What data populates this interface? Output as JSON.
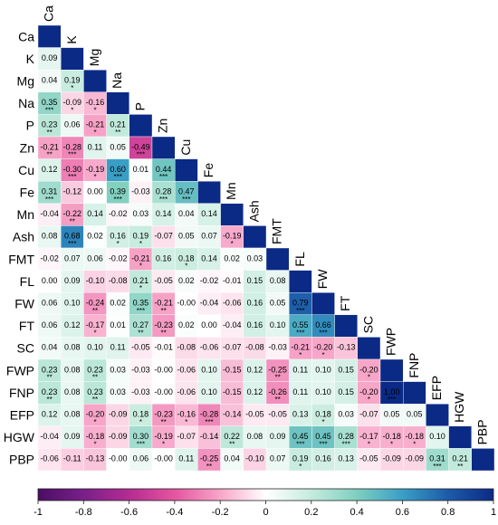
{
  "chart_data": {
    "type": "heatmap",
    "title": "",
    "variables": [
      "Ca",
      "K",
      "Mg",
      "Na",
      "P",
      "Zn",
      "Cu",
      "Fe",
      "Mn",
      "Ash",
      "FMT",
      "FL",
      "FW",
      "FT",
      "SC",
      "FWP",
      "FNP",
      "EFP",
      "HGW",
      "PBP"
    ],
    "rows": [
      {
        "label": "Ca",
        "values": [],
        "sig": []
      },
      {
        "label": "K",
        "values": [
          "0.09"
        ],
        "sig": [
          ""
        ]
      },
      {
        "label": "Mg",
        "values": [
          "0.04",
          "0.19"
        ],
        "sig": [
          "",
          "*"
        ]
      },
      {
        "label": "Na",
        "values": [
          "0.35",
          "-0.09",
          "-0.16"
        ],
        "sig": [
          "***",
          "*",
          "*"
        ]
      },
      {
        "label": "P",
        "values": [
          "0.23",
          "0.06",
          "-0.21",
          "0.21"
        ],
        "sig": [
          "**",
          "",
          "*",
          "**"
        ]
      },
      {
        "label": "Zn",
        "values": [
          "-0.21",
          "-0.28",
          "0.11",
          "0.05",
          "-0.49"
        ],
        "sig": [
          "**",
          "***",
          "",
          "",
          "***"
        ]
      },
      {
        "label": "Cu",
        "values": [
          "0.12",
          "-0.30",
          "-0.19",
          "0.60",
          "0.01",
          "0.44"
        ],
        "sig": [
          "",
          "***",
          "*",
          "***",
          "",
          "***"
        ]
      },
      {
        "label": "Fe",
        "values": [
          "0.31",
          "-0.12",
          "0.00",
          "0.39",
          "-0.03",
          "0.28",
          "0.47"
        ],
        "sig": [
          "***",
          "",
          "",
          "***",
          "",
          "***",
          "***"
        ]
      },
      {
        "label": "Mn",
        "values": [
          "-0.04",
          "-0.22",
          "0.14",
          "-0.02",
          "0.03",
          "0.14",
          "0.04",
          "0.14"
        ],
        "sig": [
          "",
          "**",
          "",
          "",
          "",
          "",
          "",
          ""
        ]
      },
      {
        "label": "Ash",
        "values": [
          "0.08",
          "0.68",
          "0.02",
          "0.16",
          "0.19",
          "-0.07",
          "0.05",
          "0.07",
          "-0.19"
        ],
        "sig": [
          "",
          "***",
          "",
          "*",
          "*",
          "",
          "",
          "",
          "*"
        ]
      },
      {
        "label": "FMT",
        "values": [
          "-0.02",
          "0.07",
          "0.06",
          "-0.02",
          "-0.21",
          "0.16",
          "0.18",
          "0.14",
          "0.02",
          "0.03"
        ],
        "sig": [
          "",
          "",
          "",
          "",
          "*",
          "",
          "*",
          "",
          "",
          ""
        ]
      },
      {
        "label": "FL",
        "values": [
          "0.00",
          "0.09",
          "-0.10",
          "-0.08",
          "0.21",
          "-0.05",
          "0.02",
          "-0.02",
          "-0.01",
          "0.15",
          "0.08"
        ],
        "sig": [
          "",
          "",
          "",
          "",
          "*",
          "",
          "",
          "",
          "",
          "",
          ""
        ]
      },
      {
        "label": "FW",
        "values": [
          "0.06",
          "0.10",
          "-0.24",
          "0.02",
          "0.35",
          "-0.21",
          "-0.00",
          "-0.04",
          "-0.06",
          "0.16",
          "0.05",
          "0.79"
        ],
        "sig": [
          "",
          "",
          "**",
          "",
          "***",
          "**",
          "",
          "",
          "",
          "",
          "",
          "***"
        ]
      },
      {
        "label": "FT",
        "values": [
          "0.06",
          "0.12",
          "-0.17",
          "0.01",
          "0.27",
          "-0.23",
          "0.02",
          "0.00",
          "-0.04",
          "0.16",
          "0.10",
          "0.55",
          "0.66"
        ],
        "sig": [
          "",
          "",
          "*",
          "",
          "**",
          "**",
          "",
          "",
          "",
          "",
          "",
          "***",
          "***"
        ]
      },
      {
        "label": "SC",
        "values": [
          "0.04",
          "0.08",
          "0.10",
          "0.11",
          "-0.05",
          "-0.01",
          "-0.08",
          "-0.06",
          "-0.07",
          "-0.08",
          "-0.03",
          "-0.21",
          "-0.20",
          "-0.13"
        ],
        "sig": [
          "",
          "",
          "",
          "",
          "",
          "",
          "",
          "",
          "",
          "",
          "",
          "*",
          "*",
          ""
        ]
      },
      {
        "label": "FWP",
        "values": [
          "0.23",
          "0.08",
          "0.23",
          "0.03",
          "-0.03",
          "-0.00",
          "-0.06",
          "0.10",
          "-0.15",
          "0.12",
          "-0.25",
          "0.11",
          "0.10",
          "0.15",
          "-0.20"
        ],
        "sig": [
          "**",
          "",
          "**",
          "",
          "",
          "",
          "",
          "",
          "",
          "",
          "**",
          "",
          "",
          "",
          "*"
        ]
      },
      {
        "label": "FNP",
        "values": [
          "0.23",
          "0.08",
          "0.23",
          "0.03",
          "-0.03",
          "-0.00",
          "-0.06",
          "0.10",
          "-0.15",
          "0.12",
          "-0.26",
          "0.11",
          "0.10",
          "0.15",
          "-0.20",
          "1.00"
        ],
        "sig": [
          "**",
          "",
          "**",
          "",
          "",
          "",
          "",
          "",
          "",
          "",
          "**",
          "",
          "",
          "",
          "*",
          "***"
        ]
      },
      {
        "label": "EFP",
        "values": [
          "0.12",
          "0.08",
          "-0.20",
          "-0.09",
          "0.18",
          "-0.23",
          "-0.16",
          "-0.28",
          "-0.14",
          "-0.05",
          "-0.05",
          "0.13",
          "0.18",
          "0.03",
          "-0.07",
          "0.05",
          "0.05"
        ],
        "sig": [
          "",
          "",
          "*",
          "",
          "*",
          "**",
          "*",
          "***",
          "",
          "",
          "",
          "",
          "*",
          "",
          "",
          "",
          ""
        ]
      },
      {
        "label": "HGW",
        "values": [
          "-0.04",
          "0.09",
          "-0.18",
          "-0.09",
          "0.30",
          "-0.19",
          "-0.07",
          "-0.14",
          "0.22",
          "0.08",
          "0.09",
          "0.45",
          "0.45",
          "0.28",
          "-0.17",
          "-0.18",
          "-0.18",
          "0.10"
        ],
        "sig": [
          "",
          "",
          "*",
          "",
          "***",
          "*",
          "",
          "",
          "**",
          "",
          "",
          "***",
          "***",
          "***",
          "*",
          "*",
          "*",
          ""
        ]
      },
      {
        "label": "PBP",
        "values": [
          "-0.06",
          "-0.11",
          "-0.13",
          "-0.00",
          "0.06",
          "-0.00",
          "0.11",
          "-0.25",
          "0.04",
          "-0.10",
          "0.07",
          "0.19",
          "0.16",
          "0.13",
          "-0.05",
          "-0.09",
          "-0.09",
          "0.31",
          "0.21"
        ],
        "sig": [
          "",
          "",
          "",
          "",
          "",
          "",
          "",
          "**",
          "",
          "",
          "",
          "*",
          "",
          "",
          "",
          "",
          "",
          "***",
          "**"
        ]
      }
    ],
    "diagonal_value": 1,
    "colorbar": {
      "range": [
        -1,
        1
      ],
      "ticks": [
        "-1",
        "-0.8",
        "-0.6",
        "-0.4",
        "-0.2",
        "0",
        "0.2",
        "0.4",
        "0.6",
        "0.8",
        "1"
      ],
      "stops": [
        {
          "v": -1.0,
          "color": "#4a0e63"
        },
        {
          "v": -0.8,
          "color": "#7a1f8a"
        },
        {
          "v": -0.6,
          "color": "#b52c92"
        },
        {
          "v": -0.4,
          "color": "#e455a0"
        },
        {
          "v": -0.2,
          "color": "#f7a6c8"
        },
        {
          "v": 0.0,
          "color": "#ffffff"
        },
        {
          "v": 0.2,
          "color": "#c5ebdd"
        },
        {
          "v": 0.4,
          "color": "#7fcfc0"
        },
        {
          "v": 0.6,
          "color": "#3a9fc6"
        },
        {
          "v": 0.8,
          "color": "#1d5ba8"
        },
        {
          "v": 1.0,
          "color": "#0b2a86"
        }
      ]
    }
  }
}
